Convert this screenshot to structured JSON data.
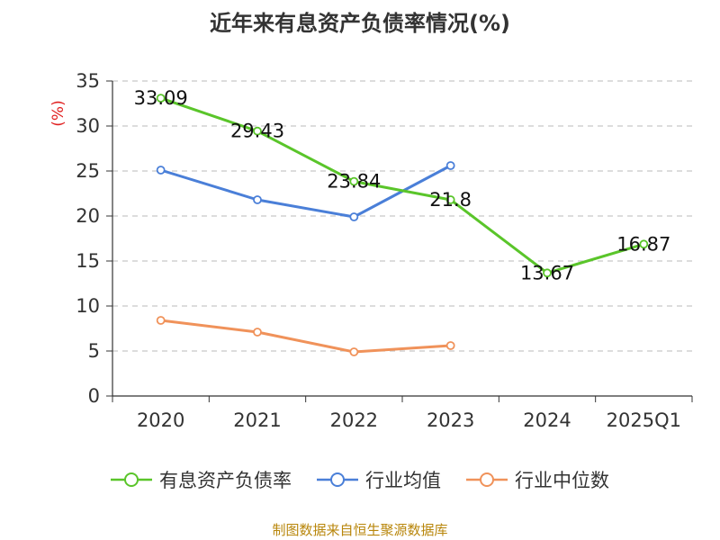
{
  "chart_data": {
    "type": "line",
    "title": "近年来有息资产负债率情况(%)",
    "ylabel": "(%)",
    "xlabel": "",
    "categories": [
      "2020",
      "2021",
      "2022",
      "2023",
      "2024",
      "2025Q1"
    ],
    "ylim": [
      0,
      35
    ],
    "yticks": [
      "0",
      "5",
      "10",
      "15",
      "20",
      "25",
      "30",
      "35"
    ],
    "grid": "horizontal-dashed",
    "legend_position": "bottom",
    "series": [
      {
        "name": "有息资产负债率",
        "color": "#5ac52a",
        "values": [
          33.09,
          29.43,
          23.84,
          21.8,
          13.67,
          16.87
        ],
        "labels": [
          "33.09",
          "29.43",
          "23.84",
          "21.8",
          "13.67",
          "16.87"
        ]
      },
      {
        "name": "行业均值",
        "color": "#4a7fd8",
        "values": [
          25.1,
          21.8,
          19.9,
          25.6,
          null,
          null
        ]
      },
      {
        "name": "行业中位数",
        "color": "#f0925a",
        "values": [
          8.4,
          7.1,
          4.9,
          5.6,
          null,
          null
        ]
      }
    ]
  },
  "footer": {
    "source": "制图数据来自恒生聚源数据库"
  }
}
